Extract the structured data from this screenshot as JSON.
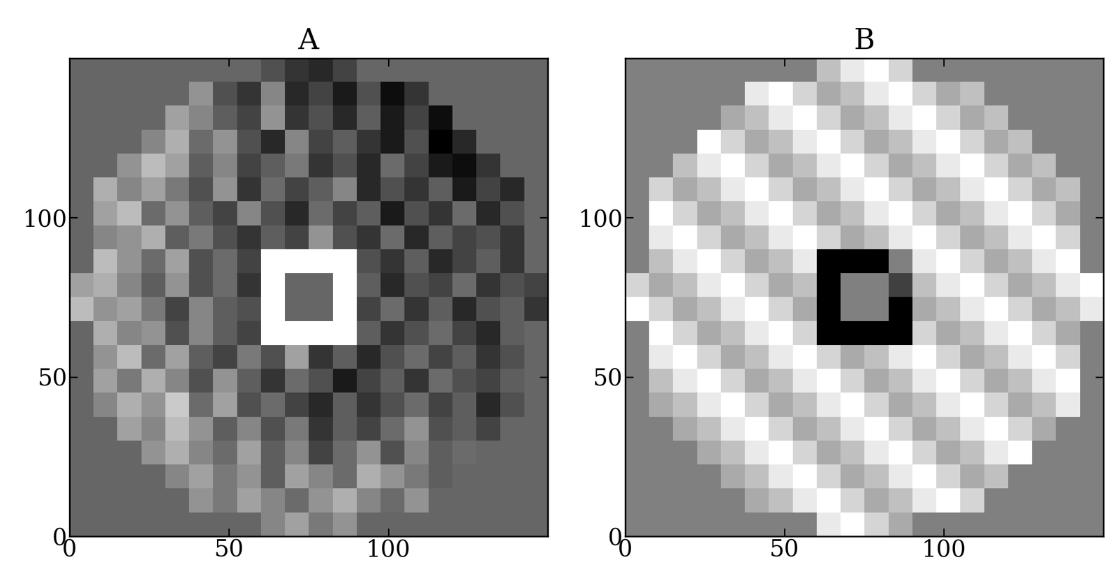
{
  "chart_data": [
    {
      "type": "heatmap",
      "title": "A",
      "xlim": [
        0,
        150
      ],
      "ylim": [
        0,
        150
      ],
      "xticks": [
        0,
        50,
        100
      ],
      "yticks": [
        0,
        50,
        100
      ],
      "cells": [
        [
          null,
          null,
          null,
          null,
          null,
          null,
          null,
          null,
          -0.3,
          -0.5,
          -0.6,
          -0.4,
          null,
          null,
          null,
          null,
          null,
          null,
          null,
          null
        ],
        [
          null,
          null,
          null,
          null,
          null,
          0.2,
          -0.3,
          -0.5,
          0.1,
          -0.6,
          -0.4,
          -0.7,
          -0.3,
          -0.8,
          -0.5,
          null,
          null,
          null,
          null,
          null
        ],
        [
          null,
          null,
          null,
          null,
          0.3,
          0.1,
          -0.2,
          -0.4,
          0.2,
          -0.5,
          -0.3,
          -0.6,
          -0.2,
          -0.7,
          -0.4,
          -0.8,
          null,
          null,
          null,
          null
        ],
        [
          null,
          null,
          null,
          0.1,
          0.4,
          -0.1,
          0.2,
          -0.3,
          -0.6,
          0.1,
          -0.4,
          -0.2,
          -0.5,
          -0.7,
          -0.3,
          -0.9,
          -0.6,
          null,
          null,
          null
        ],
        [
          null,
          null,
          0.2,
          0.5,
          0.3,
          -0.2,
          0.1,
          -0.4,
          -0.2,
          0.0,
          -0.5,
          -0.3,
          -0.6,
          -0.1,
          -0.4,
          -0.7,
          -0.8,
          -0.5,
          null,
          null
        ],
        [
          null,
          0.4,
          0.1,
          0.3,
          0.0,
          -0.3,
          0.2,
          -0.5,
          -0.1,
          -0.4,
          -0.2,
          0.1,
          -0.6,
          -0.3,
          -0.5,
          -0.2,
          -0.7,
          -0.4,
          -0.6,
          null
        ],
        [
          null,
          0.3,
          0.5,
          -0.1,
          0.2,
          -0.2,
          -0.4,
          0.1,
          -0.3,
          -0.6,
          -0.1,
          -0.4,
          -0.2,
          -0.7,
          -0.3,
          -0.5,
          -0.1,
          -0.6,
          -0.3,
          null
        ],
        [
          null,
          0.1,
          0.2,
          0.4,
          -0.2,
          0.0,
          -0.3,
          -0.5,
          -0.2,
          -0.4,
          0.2,
          -0.3,
          -0.5,
          -0.1,
          -0.6,
          -0.2,
          -0.4,
          -0.3,
          -0.5,
          null
        ],
        [
          null,
          0.5,
          0.2,
          -0.1,
          0.3,
          -0.3,
          -0.1,
          -0.4,
          1.0,
          1.0,
          1.0,
          1.0,
          -0.3,
          -0.5,
          -0.2,
          -0.6,
          -0.4,
          -0.2,
          -0.5,
          null
        ],
        [
          0.3,
          0.4,
          0.1,
          -0.2,
          0.2,
          -0.3,
          -0.1,
          -0.5,
          1.0,
          null,
          null,
          1.0,
          -0.2,
          -0.6,
          -0.3,
          -0.4,
          -0.1,
          -0.5,
          -0.3,
          -0.4
        ],
        [
          0.5,
          0.2,
          0.3,
          0.0,
          -0.4,
          0.1,
          -0.2,
          -0.3,
          1.0,
          null,
          null,
          1.0,
          -0.4,
          -0.1,
          -0.5,
          -0.2,
          -0.6,
          -0.3,
          -0.2,
          -0.5
        ],
        [
          null,
          0.4,
          0.1,
          0.2,
          -0.3,
          0.1,
          -0.2,
          -0.4,
          1.0,
          1.0,
          1.0,
          1.0,
          -0.2,
          -0.5,
          -0.3,
          -0.1,
          -0.4,
          -0.6,
          -0.2,
          null
        ],
        [
          null,
          0.2,
          0.5,
          -0.1,
          0.3,
          -0.2,
          -0.4,
          0.0,
          -0.3,
          0.3,
          -0.5,
          -0.2,
          -0.6,
          -0.3,
          -0.1,
          -0.4,
          -0.2,
          -0.5,
          -0.3,
          null
        ],
        [
          null,
          0.3,
          0.0,
          0.4,
          0.1,
          -0.3,
          0.2,
          -0.2,
          -0.5,
          -0.1,
          -0.3,
          -0.7,
          -0.4,
          -0.2,
          -0.5,
          -0.1,
          -0.3,
          -0.4,
          -0.2,
          null
        ],
        [
          null,
          0.1,
          0.4,
          0.2,
          0.6,
          -0.1,
          0.3,
          -0.3,
          -0.1,
          -0.4,
          -0.6,
          -0.2,
          -0.5,
          -0.3,
          -0.1,
          -0.4,
          -0.2,
          -0.6,
          -0.3,
          null
        ],
        [
          null,
          null,
          0.3,
          0.1,
          0.5,
          0.2,
          -0.2,
          0.1,
          -0.3,
          0.0,
          -0.5,
          -0.2,
          -0.4,
          -0.1,
          0.2,
          -0.3,
          -0.2,
          -0.4,
          null,
          null
        ],
        [
          null,
          null,
          null,
          0.2,
          0.4,
          0.1,
          -0.1,
          0.3,
          -0.2,
          0.1,
          -0.4,
          -0.1,
          0.2,
          -0.3,
          0.1,
          -0.2,
          -0.1,
          null,
          null,
          null
        ],
        [
          null,
          null,
          null,
          null,
          0.1,
          0.3,
          0.0,
          0.2,
          -0.2,
          0.3,
          0.1,
          -0.1,
          0.4,
          0.2,
          0.0,
          -0.2,
          null,
          null,
          null,
          null
        ],
        [
          null,
          null,
          null,
          null,
          null,
          0.2,
          0.0,
          0.3,
          0.1,
          -0.1,
          0.2,
          0.4,
          0.1,
          -0.1,
          0.2,
          null,
          null,
          null,
          null,
          null
        ],
        [
          null,
          null,
          null,
          null,
          null,
          null,
          null,
          null,
          0.1,
          0.3,
          0.0,
          0.2,
          null,
          null,
          null,
          null,
          null,
          null,
          null,
          null
        ]
      ]
    },
    {
      "type": "heatmap",
      "title": "B",
      "xlim": [
        0,
        150
      ],
      "ylim": [
        0,
        150
      ],
      "xticks": [
        0,
        50,
        100
      ],
      "yticks": [
        0,
        50,
        100
      ],
      "cells": [
        [
          null,
          null,
          null,
          null,
          null,
          null,
          null,
          null,
          -0.1,
          0.1,
          0.2,
          0.0,
          null,
          null,
          null,
          null,
          null,
          null,
          null,
          null
        ],
        [
          null,
          null,
          null,
          null,
          null,
          0.1,
          0.2,
          0.0,
          -0.2,
          -0.1,
          0.1,
          0.2,
          0.0,
          -0.2,
          -0.1,
          null,
          null,
          null,
          null,
          null
        ],
        [
          null,
          null,
          null,
          null,
          -0.2,
          -0.1,
          0.1,
          0.2,
          0.0,
          -0.2,
          -0.1,
          0.1,
          0.2,
          0.0,
          -0.2,
          -0.1,
          null,
          null,
          null,
          null
        ],
        [
          null,
          null,
          null,
          0.2,
          0.0,
          -0.2,
          -0.1,
          0.1,
          0.2,
          0.0,
          -0.2,
          -0.1,
          0.1,
          0.2,
          0.0,
          -0.2,
          -0.1,
          null,
          null,
          null
        ],
        [
          null,
          null,
          -0.1,
          0.1,
          0.2,
          0.0,
          -0.2,
          -0.1,
          0.1,
          0.2,
          0.0,
          -0.2,
          -0.1,
          0.1,
          0.2,
          0.0,
          -0.2,
          -0.1,
          null,
          null
        ],
        [
          null,
          0.0,
          -0.2,
          -0.1,
          0.1,
          0.2,
          0.0,
          -0.2,
          -0.1,
          0.1,
          0.2,
          0.0,
          -0.2,
          -0.1,
          0.1,
          0.2,
          0.0,
          -0.2,
          -0.1,
          null
        ],
        [
          null,
          0.2,
          0.0,
          -0.2,
          -0.1,
          0.1,
          0.2,
          0.0,
          -0.2,
          -0.1,
          0.1,
          0.2,
          0.0,
          -0.2,
          -0.1,
          0.1,
          0.2,
          0.0,
          -0.2,
          null
        ],
        [
          null,
          0.1,
          0.2,
          0.0,
          -0.2,
          -0.1,
          0.1,
          0.2,
          0.0,
          -0.2,
          -0.1,
          0.1,
          0.2,
          0.0,
          -0.2,
          -0.1,
          0.1,
          0.2,
          0.0,
          null
        ],
        [
          null,
          -0.1,
          0.1,
          0.2,
          0.0,
          -0.2,
          -0.1,
          0.1,
          -1.0,
          -1.0,
          -1.0,
          -0.4,
          0.1,
          0.2,
          0.0,
          -0.2,
          -0.1,
          0.1,
          0.2,
          null
        ],
        [
          0.0,
          -0.2,
          -0.1,
          0.1,
          0.2,
          0.0,
          -0.2,
          -0.1,
          -1.0,
          null,
          null,
          -0.7,
          -0.1,
          0.1,
          0.2,
          0.0,
          -0.2,
          -0.1,
          0.1,
          0.2
        ],
        [
          0.2,
          0.0,
          -0.2,
          -0.1,
          0.1,
          0.2,
          0.0,
          -0.2,
          -1.0,
          null,
          null,
          -1.0,
          -0.2,
          -0.1,
          0.1,
          0.2,
          0.0,
          -0.2,
          -0.1,
          0.1
        ],
        [
          null,
          0.2,
          0.0,
          -0.2,
          -0.1,
          0.1,
          0.2,
          0.0,
          -1.0,
          -1.0,
          -1.0,
          -1.0,
          0.0,
          -0.2,
          -0.1,
          0.1,
          0.2,
          0.0,
          -0.2,
          null
        ],
        [
          null,
          0.1,
          0.2,
          0.0,
          -0.2,
          -0.1,
          0.1,
          0.2,
          0.0,
          -0.2,
          -0.1,
          0.1,
          0.2,
          0.0,
          -0.2,
          -0.1,
          0.1,
          0.2,
          0.0,
          null
        ],
        [
          null,
          -0.1,
          0.1,
          0.2,
          0.0,
          -0.2,
          -0.1,
          0.1,
          0.2,
          0.0,
          -0.2,
          -0.1,
          0.1,
          0.2,
          0.0,
          -0.2,
          -0.1,
          0.1,
          0.2,
          null
        ],
        [
          null,
          -0.2,
          -0.1,
          0.1,
          0.2,
          0.0,
          -0.2,
          -0.1,
          0.1,
          0.2,
          0.0,
          -0.2,
          -0.1,
          0.1,
          0.2,
          0.0,
          -0.2,
          -0.1,
          0.1,
          null
        ],
        [
          null,
          null,
          -0.2,
          -0.1,
          0.1,
          0.2,
          0.0,
          -0.2,
          -0.1,
          0.1,
          0.2,
          0.0,
          -0.2,
          -0.1,
          0.1,
          0.2,
          0.0,
          -0.2,
          null,
          null
        ],
        [
          null,
          null,
          null,
          -0.2,
          -0.1,
          0.1,
          0.2,
          0.0,
          -0.2,
          -0.1,
          0.1,
          0.2,
          0.0,
          -0.2,
          -0.1,
          0.1,
          0.2,
          null,
          null,
          null
        ],
        [
          null,
          null,
          null,
          null,
          -0.2,
          -0.1,
          0.1,
          0.2,
          0.0,
          -0.2,
          -0.1,
          0.1,
          0.2,
          0.0,
          -0.2,
          -0.1,
          null,
          null,
          null,
          null
        ],
        [
          null,
          null,
          null,
          null,
          null,
          -0.2,
          -0.1,
          0.1,
          0.2,
          0.0,
          -0.2,
          -0.1,
          0.1,
          0.2,
          0.0,
          null,
          null,
          null,
          null,
          null
        ],
        [
          null,
          null,
          null,
          null,
          null,
          null,
          null,
          null,
          0.1,
          0.2,
          0.0,
          -0.2,
          null,
          null,
          null,
          null,
          null,
          null,
          null,
          null
        ]
      ]
    }
  ]
}
